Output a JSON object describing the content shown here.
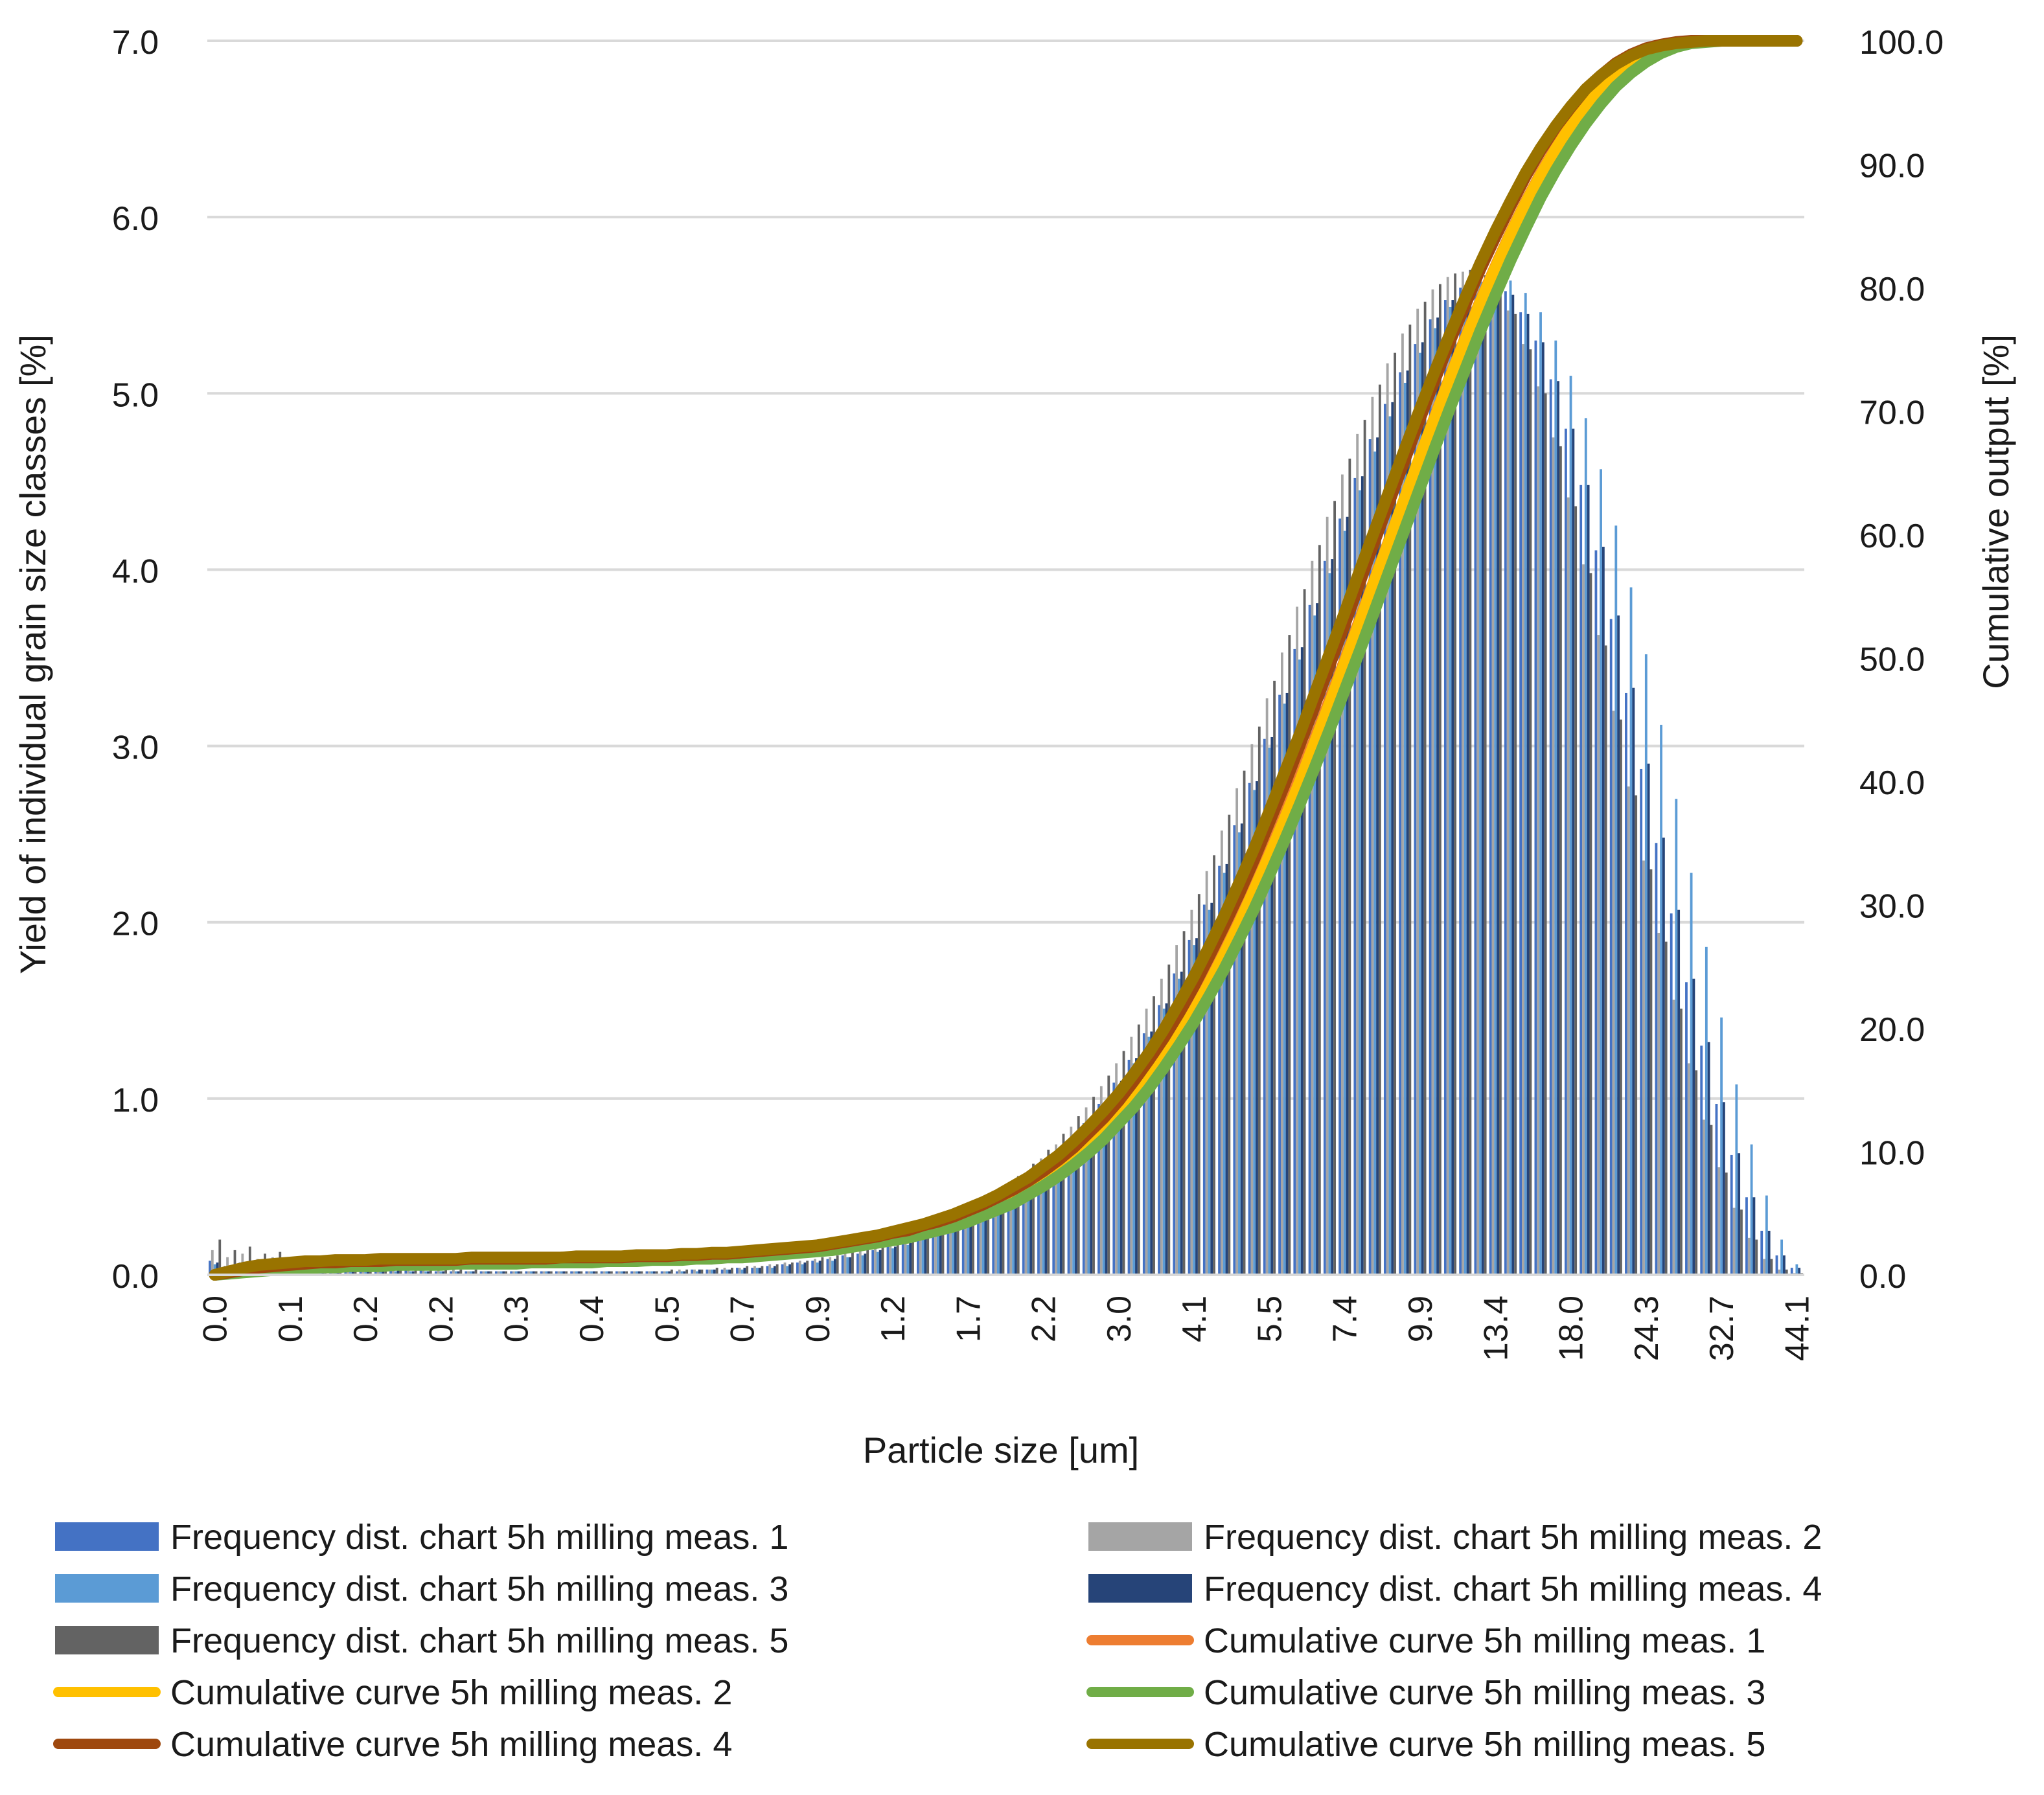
{
  "chart_data": {
    "type": "bar",
    "xlabel": "Particle size [um]",
    "ylabel": "Yield of individual grain size classes [%]",
    "y2label": "Cumulative output [%]",
    "ylim": [
      0,
      7
    ],
    "y2lim": [
      0,
      100
    ],
    "yticks": [
      "0.0",
      "1.0",
      "2.0",
      "3.0",
      "4.0",
      "5.0",
      "6.0",
      "7.0"
    ],
    "y2ticks": [
      "0.0",
      "10.0",
      "20.0",
      "30.0",
      "40.0",
      "50.0",
      "60.0",
      "70.0",
      "80.0",
      "90.0",
      "100.0"
    ],
    "categories_note": "106 grain size classes; every 5th class is labelled on the x axis",
    "xtick_labels": [
      "0.0",
      "0.1",
      "0.2",
      "0.2",
      "0.3",
      "0.4",
      "0.5",
      "0.7",
      "0.9",
      "1.2",
      "1.7",
      "2.2",
      "3.0",
      "4.1",
      "5.5",
      "7.4",
      "9.9",
      "13.4",
      "18.0",
      "24.3",
      "32.7",
      "44.1"
    ],
    "grid": true,
    "legend_position": "bottom",
    "colors": {
      "freq1": "#4472c4",
      "freq2": "#a5a5a5",
      "freq3": "#5b9bd5",
      "freq4": "#264478",
      "freq5": "#636363",
      "cum1": "#ed7d31",
      "cum2": "#ffc000",
      "cum3": "#70ad47",
      "cum4": "#9e480e",
      "cum5": "#997300"
    },
    "series": [
      {
        "name": "Frequency dist. chart 5h milling meas. 1",
        "kind": "bar",
        "color_key": "freq1",
        "values": [
          0.08,
          0.05,
          0.07,
          0.05,
          0.06,
          0.04,
          0.06,
          0.04,
          0.05,
          0.04,
          0.04,
          0.03,
          0.03,
          0.03,
          0.03,
          0.02,
          0.02,
          0.02,
          0.02,
          0.02,
          0.02,
          0.02,
          0.02,
          0.02,
          0.02,
          0.02,
          0.02,
          0.02,
          0.02,
          0.02,
          0.02,
          0.02,
          0.03,
          0.03,
          0.03,
          0.04,
          0.04,
          0.05,
          0.06,
          0.07,
          0.08,
          0.09,
          0.11,
          0.12,
          0.14,
          0.16,
          0.18,
          0.21,
          0.24,
          0.27,
          0.31,
          0.35,
          0.4,
          0.46,
          0.52,
          0.59,
          0.67,
          0.76,
          0.86,
          0.97,
          1.09,
          1.22,
          1.37,
          1.53,
          1.71,
          1.9,
          2.1,
          2.32,
          2.55,
          2.79,
          3.04,
          3.29,
          3.55,
          3.8,
          4.05,
          4.29,
          4.52,
          4.74,
          4.94,
          5.12,
          5.28,
          5.42,
          5.53,
          5.6,
          5.64,
          5.64,
          5.58,
          5.46,
          5.3,
          5.08,
          4.8,
          4.48,
          4.11,
          3.72,
          3.3,
          2.87,
          2.45,
          2.05,
          1.66,
          1.3,
          0.97,
          0.68,
          0.44,
          0.25,
          0.11,
          0.04
        ]
      },
      {
        "name": "Frequency dist. chart 5h milling meas. 2",
        "kind": "bar",
        "color_key": "freq2",
        "values": [
          0.14,
          0.1,
          0.12,
          0.09,
          0.1,
          0.07,
          0.08,
          0.05,
          0.06,
          0.05,
          0.05,
          0.04,
          0.04,
          0.03,
          0.03,
          0.03,
          0.03,
          0.02,
          0.02,
          0.02,
          0.02,
          0.02,
          0.02,
          0.02,
          0.02,
          0.02,
          0.02,
          0.02,
          0.02,
          0.02,
          0.02,
          0.03,
          0.03,
          0.03,
          0.04,
          0.04,
          0.05,
          0.06,
          0.07,
          0.08,
          0.09,
          0.1,
          0.12,
          0.14,
          0.16,
          0.18,
          0.21,
          0.24,
          0.27,
          0.31,
          0.35,
          0.4,
          0.45,
          0.51,
          0.58,
          0.66,
          0.74,
          0.84,
          0.95,
          1.07,
          1.2,
          1.35,
          1.51,
          1.68,
          1.87,
          2.07,
          2.29,
          2.52,
          2.76,
          3.01,
          3.27,
          3.53,
          3.79,
          4.05,
          4.3,
          4.54,
          4.77,
          4.98,
          5.17,
          5.34,
          5.48,
          5.59,
          5.66,
          5.69,
          5.67,
          5.6,
          5.47,
          5.28,
          5.04,
          4.75,
          4.41,
          4.03,
          3.63,
          3.2,
          2.77,
          2.35,
          1.94,
          1.56,
          1.2,
          0.88,
          0.61,
          0.38,
          0.21,
          0.09,
          0.03,
          0.01
        ]
      },
      {
        "name": "Frequency dist. chart 5h milling meas. 3",
        "kind": "bar",
        "color_key": "freq3",
        "values": [
          0.06,
          0.04,
          0.05,
          0.04,
          0.04,
          0.03,
          0.04,
          0.03,
          0.03,
          0.03,
          0.03,
          0.02,
          0.02,
          0.02,
          0.02,
          0.02,
          0.02,
          0.02,
          0.02,
          0.02,
          0.02,
          0.02,
          0.02,
          0.02,
          0.02,
          0.02,
          0.02,
          0.02,
          0.02,
          0.02,
          0.02,
          0.02,
          0.02,
          0.03,
          0.03,
          0.03,
          0.04,
          0.04,
          0.05,
          0.06,
          0.07,
          0.08,
          0.1,
          0.11,
          0.13,
          0.15,
          0.17,
          0.2,
          0.23,
          0.26,
          0.3,
          0.34,
          0.39,
          0.44,
          0.5,
          0.57,
          0.65,
          0.74,
          0.84,
          0.95,
          1.07,
          1.2,
          1.35,
          1.51,
          1.68,
          1.87,
          2.07,
          2.28,
          2.51,
          2.75,
          2.99,
          3.24,
          3.49,
          3.74,
          3.98,
          4.22,
          4.45,
          4.67,
          4.87,
          5.06,
          5.23,
          5.37,
          5.49,
          5.58,
          5.64,
          5.66,
          5.64,
          5.57,
          5.46,
          5.3,
          5.1,
          4.86,
          4.57,
          4.25,
          3.9,
          3.52,
          3.12,
          2.7,
          2.28,
          1.86,
          1.46,
          1.08,
          0.74,
          0.45,
          0.2,
          0.06
        ]
      },
      {
        "name": "Frequency dist. chart 5h milling meas. 4",
        "kind": "bar",
        "color_key": "freq4",
        "values": [
          0.07,
          0.05,
          0.06,
          0.04,
          0.05,
          0.04,
          0.05,
          0.03,
          0.04,
          0.03,
          0.03,
          0.03,
          0.03,
          0.02,
          0.02,
          0.02,
          0.02,
          0.02,
          0.02,
          0.02,
          0.02,
          0.02,
          0.02,
          0.02,
          0.02,
          0.02,
          0.02,
          0.02,
          0.02,
          0.02,
          0.02,
          0.02,
          0.03,
          0.03,
          0.03,
          0.04,
          0.04,
          0.05,
          0.06,
          0.07,
          0.08,
          0.09,
          0.1,
          0.12,
          0.14,
          0.16,
          0.18,
          0.21,
          0.24,
          0.28,
          0.32,
          0.36,
          0.41,
          0.47,
          0.53,
          0.6,
          0.68,
          0.77,
          0.87,
          0.98,
          1.1,
          1.23,
          1.38,
          1.54,
          1.72,
          1.91,
          2.11,
          2.33,
          2.56,
          2.8,
          3.05,
          3.3,
          3.56,
          3.81,
          4.06,
          4.3,
          4.53,
          4.75,
          4.95,
          5.13,
          5.29,
          5.43,
          5.53,
          5.6,
          5.63,
          5.62,
          5.56,
          5.45,
          5.29,
          5.07,
          4.8,
          4.48,
          4.13,
          3.74,
          3.33,
          2.9,
          2.48,
          2.07,
          1.68,
          1.32,
          0.98,
          0.69,
          0.44,
          0.25,
          0.11,
          0.04
        ]
      },
      {
        "name": "Frequency dist. chart 5h milling meas. 5",
        "kind": "bar",
        "color_key": "freq5",
        "values": [
          0.2,
          0.14,
          0.16,
          0.12,
          0.13,
          0.09,
          0.1,
          0.07,
          0.07,
          0.06,
          0.05,
          0.05,
          0.04,
          0.04,
          0.03,
          0.03,
          0.03,
          0.03,
          0.02,
          0.02,
          0.02,
          0.02,
          0.02,
          0.02,
          0.02,
          0.02,
          0.02,
          0.02,
          0.02,
          0.02,
          0.03,
          0.03,
          0.03,
          0.04,
          0.04,
          0.05,
          0.05,
          0.06,
          0.07,
          0.08,
          0.1,
          0.11,
          0.13,
          0.15,
          0.17,
          0.2,
          0.23,
          0.26,
          0.3,
          0.34,
          0.39,
          0.44,
          0.5,
          0.56,
          0.63,
          0.71,
          0.8,
          0.9,
          1.01,
          1.13,
          1.27,
          1.42,
          1.58,
          1.76,
          1.95,
          2.16,
          2.38,
          2.61,
          2.86,
          3.11,
          3.37,
          3.63,
          3.89,
          4.14,
          4.39,
          4.63,
          4.85,
          5.05,
          5.23,
          5.39,
          5.52,
          5.62,
          5.68,
          5.7,
          5.67,
          5.59,
          5.45,
          5.25,
          5.0,
          4.7,
          4.36,
          3.98,
          3.57,
          3.15,
          2.72,
          2.3,
          1.89,
          1.51,
          1.16,
          0.85,
          0.58,
          0.37,
          0.2,
          0.09,
          0.03,
          0.01
        ]
      },
      {
        "name": "Cumulative curve 5h milling meas. 1",
        "kind": "line",
        "color_key": "cum1",
        "values": [
          0.0,
          0.2,
          0.4,
          0.6,
          0.7,
          0.8,
          0.9,
          1.0,
          1.0,
          1.1,
          1.1,
          1.1,
          1.2,
          1.2,
          1.2,
          1.2,
          1.2,
          1.2,
          1.3,
          1.3,
          1.3,
          1.3,
          1.3,
          1.3,
          1.4,
          1.4,
          1.4,
          1.4,
          1.4,
          1.5,
          1.5,
          1.5,
          1.6,
          1.6,
          1.7,
          1.7,
          1.8,
          1.9,
          2.0,
          2.1,
          2.2,
          2.4,
          2.5,
          2.7,
          2.9,
          3.2,
          3.4,
          3.7,
          4.1,
          4.5,
          4.9,
          5.4,
          5.9,
          6.5,
          7.2,
          8.0,
          8.9,
          9.9,
          11.0,
          12.2,
          13.6,
          15.0,
          16.6,
          18.3,
          20.2,
          22.2,
          24.4,
          26.7,
          29.2,
          31.8,
          34.5,
          37.4,
          40.4,
          43.4,
          46.6,
          49.8,
          53.1,
          56.4,
          59.7,
          63.0,
          66.3,
          69.6,
          72.8,
          75.9,
          78.9,
          81.7,
          84.4,
          86.9,
          89.2,
          91.3,
          93.2,
          94.8,
          96.2,
          97.4,
          98.3,
          99.0,
          99.5,
          99.8,
          99.9,
          100.0,
          100.0,
          100.0,
          100.0,
          100.0,
          100.0,
          100.0
        ]
      },
      {
        "name": "Cumulative curve 5h milling meas. 2",
        "kind": "line",
        "color_key": "cum2",
        "values": [
          0.0,
          0.3,
          0.5,
          0.7,
          0.8,
          0.9,
          1.0,
          1.0,
          1.1,
          1.1,
          1.1,
          1.2,
          1.2,
          1.2,
          1.2,
          1.2,
          1.2,
          1.3,
          1.3,
          1.3,
          1.3,
          1.3,
          1.3,
          1.3,
          1.4,
          1.4,
          1.4,
          1.4,
          1.4,
          1.5,
          1.5,
          1.5,
          1.6,
          1.6,
          1.7,
          1.7,
          1.8,
          1.9,
          2.0,
          2.1,
          2.2,
          2.3,
          2.5,
          2.7,
          2.9,
          3.1,
          3.4,
          3.7,
          4.0,
          4.4,
          4.8,
          5.2,
          5.7,
          6.3,
          6.9,
          7.6,
          8.4,
          9.3,
          10.4,
          11.5,
          12.8,
          14.2,
          15.8,
          17.5,
          19.4,
          21.4,
          23.6,
          26.0,
          28.5,
          31.2,
          34.0,
          36.9,
          39.9,
          43.1,
          46.3,
          49.6,
          52.9,
          56.3,
          59.6,
          63.0,
          66.3,
          69.5,
          72.7,
          75.8,
          78.8,
          81.6,
          84.3,
          86.8,
          89.1,
          91.2,
          93.1,
          94.7,
          96.1,
          97.3,
          98.2,
          98.9,
          99.4,
          99.7,
          99.9,
          100.0,
          100.0,
          100.0,
          100.0,
          100.0,
          100.0,
          100.0
        ]
      },
      {
        "name": "Cumulative curve 5h milling meas. 3",
        "kind": "line",
        "color_key": "cum3",
        "values": [
          0.0,
          0.1,
          0.2,
          0.3,
          0.4,
          0.5,
          0.5,
          0.6,
          0.6,
          0.7,
          0.7,
          0.7,
          0.8,
          0.8,
          0.8,
          0.8,
          0.9,
          0.9,
          0.9,
          0.9,
          0.9,
          1.0,
          1.0,
          1.0,
          1.0,
          1.0,
          1.1,
          1.1,
          1.1,
          1.2,
          1.2,
          1.2,
          1.3,
          1.3,
          1.4,
          1.4,
          1.5,
          1.6,
          1.7,
          1.8,
          1.9,
          2.0,
          2.2,
          2.4,
          2.6,
          2.8,
          3.0,
          3.3,
          3.6,
          3.9,
          4.3,
          4.8,
          5.3,
          5.8,
          6.5,
          7.2,
          8.0,
          8.9,
          9.9,
          11.0,
          12.3,
          13.6,
          15.1,
          16.8,
          18.6,
          20.5,
          22.6,
          24.8,
          27.2,
          29.7,
          32.4,
          35.2,
          38.1,
          41.1,
          44.2,
          47.4,
          50.6,
          53.9,
          57.2,
          60.5,
          63.8,
          67.1,
          70.3,
          73.4,
          76.5,
          79.4,
          82.2,
          84.8,
          87.3,
          89.5,
          91.5,
          93.3,
          94.9,
          96.3,
          97.4,
          98.3,
          99.0,
          99.5,
          99.8,
          99.9,
          100.0,
          100.0,
          100.0,
          100.0,
          100.0,
          100.0
        ]
      },
      {
        "name": "Cumulative curve 5h milling meas. 4",
        "kind": "line",
        "color_key": "cum4",
        "values": [
          0.0,
          0.2,
          0.4,
          0.6,
          0.7,
          0.8,
          0.9,
          1.0,
          1.0,
          1.1,
          1.1,
          1.1,
          1.2,
          1.2,
          1.2,
          1.2,
          1.2,
          1.3,
          1.3,
          1.3,
          1.3,
          1.3,
          1.3,
          1.4,
          1.4,
          1.4,
          1.4,
          1.4,
          1.5,
          1.5,
          1.5,
          1.6,
          1.6,
          1.7,
          1.7,
          1.8,
          1.9,
          2.0,
          2.1,
          2.2,
          2.3,
          2.5,
          2.7,
          2.9,
          3.1,
          3.4,
          3.6,
          4.0,
          4.3,
          4.7,
          5.2,
          5.7,
          6.3,
          6.9,
          7.6,
          8.4,
          9.3,
          10.3,
          11.5,
          12.7,
          14.1,
          15.7,
          17.4,
          19.2,
          21.2,
          23.4,
          25.8,
          28.3,
          30.9,
          33.7,
          36.7,
          39.7,
          42.9,
          46.1,
          49.4,
          52.7,
          56.1,
          59.5,
          62.8,
          66.1,
          69.4,
          72.6,
          75.7,
          78.6,
          81.5,
          84.1,
          86.6,
          89.0,
          91.1,
          93.0,
          94.6,
          96.1,
          97.2,
          98.2,
          98.9,
          99.4,
          99.7,
          99.9,
          100.0,
          100.0,
          100.0,
          100.0,
          100.0,
          100.0,
          100.0,
          100.0
        ]
      },
      {
        "name": "Cumulative curve 5h milling meas. 5",
        "kind": "line",
        "color_key": "cum5",
        "values": [
          0.0,
          0.3,
          0.6,
          0.8,
          0.9,
          1.0,
          1.1,
          1.1,
          1.2,
          1.2,
          1.2,
          1.3,
          1.3,
          1.3,
          1.3,
          1.3,
          1.3,
          1.4,
          1.4,
          1.4,
          1.4,
          1.4,
          1.4,
          1.4,
          1.5,
          1.5,
          1.5,
          1.5,
          1.6,
          1.6,
          1.6,
          1.7,
          1.7,
          1.8,
          1.8,
          1.9,
          2.0,
          2.1,
          2.2,
          2.3,
          2.4,
          2.6,
          2.8,
          3.0,
          3.2,
          3.5,
          3.8,
          4.1,
          4.5,
          4.9,
          5.4,
          5.9,
          6.5,
          7.2,
          7.9,
          8.8,
          9.7,
          10.8,
          12.0,
          13.3,
          14.7,
          16.3,
          18.0,
          19.9,
          22.0,
          24.2,
          26.6,
          29.1,
          31.8,
          34.6,
          37.6,
          40.7,
          43.8,
          47.1,
          50.4,
          53.7,
          57.1,
          60.4,
          63.7,
          67.0,
          70.2,
          73.3,
          76.3,
          79.2,
          82.0,
          84.6,
          87.0,
          89.3,
          91.3,
          93.1,
          94.7,
          96.1,
          97.2,
          98.1,
          98.8,
          99.3,
          99.6,
          99.8,
          99.9,
          100.0,
          100.0,
          100.0,
          100.0,
          100.0,
          100.0,
          100.0
        ]
      }
    ]
  }
}
